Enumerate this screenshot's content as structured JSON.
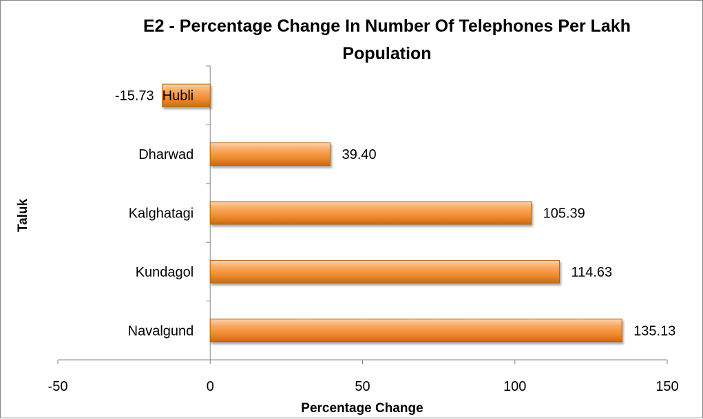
{
  "chart_data": {
    "type": "bar",
    "orientation": "horizontal",
    "title_line1": "E2 - Percentage Change In Number Of Telephones Per Lakh",
    "title_line2": "Population",
    "xlabel": "Percentage Change",
    "ylabel": "Taluk",
    "categories": [
      "Hubli",
      "Dharwad",
      "Kalghatagi",
      "Kundagol",
      "Navalgund"
    ],
    "values": [
      -15.73,
      39.4,
      105.39,
      114.63,
      135.13
    ],
    "data_labels": [
      "-15.73",
      "39.40",
      "105.39",
      "114.63",
      "135.13"
    ],
    "xlim": [
      -50,
      150
    ],
    "xticks": [
      -50,
      0,
      50,
      100,
      150
    ],
    "xtick_labels": [
      "-50",
      "0",
      "50",
      "100",
      "150"
    ],
    "grid": false,
    "legend": "none",
    "bar_color": "#F79646"
  }
}
